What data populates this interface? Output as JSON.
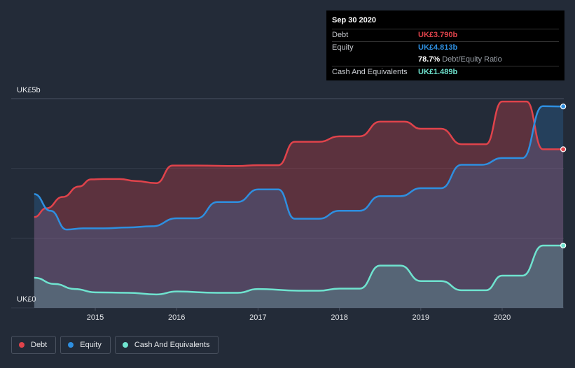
{
  "chart_data": {
    "type": "area",
    "ylabel_top": "UK£5b",
    "ylabel_bottom": "UK£0",
    "ylim": [
      0,
      5
    ],
    "x_ticks": [
      "2015",
      "2016",
      "2017",
      "2018",
      "2019",
      "2020"
    ],
    "series": [
      {
        "name": "Debt",
        "color": "#e0434b",
        "points": [
          [
            2014.25,
            2.17
          ],
          [
            2014.4,
            2.38
          ],
          [
            2014.6,
            2.65
          ],
          [
            2014.8,
            2.9
          ],
          [
            2014.95,
            3.07
          ],
          [
            2015.1,
            3.08
          ],
          [
            2015.3,
            3.08
          ],
          [
            2015.5,
            3.03
          ],
          [
            2015.75,
            2.98
          ],
          [
            2015.95,
            3.4
          ],
          [
            2016.25,
            3.4
          ],
          [
            2016.75,
            3.39
          ],
          [
            2017.0,
            3.41
          ],
          [
            2017.25,
            3.41
          ],
          [
            2017.45,
            3.97
          ],
          [
            2017.75,
            3.97
          ],
          [
            2018.0,
            4.1
          ],
          [
            2018.25,
            4.1
          ],
          [
            2018.5,
            4.45
          ],
          [
            2018.8,
            4.45
          ],
          [
            2019.0,
            4.28
          ],
          [
            2019.25,
            4.28
          ],
          [
            2019.5,
            3.91
          ],
          [
            2019.8,
            3.91
          ],
          [
            2020.0,
            4.93
          ],
          [
            2020.3,
            4.93
          ],
          [
            2020.5,
            3.79
          ],
          [
            2020.75,
            3.79
          ]
        ]
      },
      {
        "name": "Equity",
        "color": "#2e8fe0",
        "points": [
          [
            2014.25,
            2.72
          ],
          [
            2014.45,
            2.32
          ],
          [
            2014.65,
            1.87
          ],
          [
            2014.85,
            1.9
          ],
          [
            2015.1,
            1.9
          ],
          [
            2015.4,
            1.92
          ],
          [
            2015.7,
            1.95
          ],
          [
            2016.0,
            2.14
          ],
          [
            2016.25,
            2.14
          ],
          [
            2016.5,
            2.53
          ],
          [
            2016.75,
            2.53
          ],
          [
            2017.0,
            2.83
          ],
          [
            2017.25,
            2.83
          ],
          [
            2017.45,
            2.13
          ],
          [
            2017.75,
            2.13
          ],
          [
            2018.0,
            2.32
          ],
          [
            2018.25,
            2.32
          ],
          [
            2018.5,
            2.67
          ],
          [
            2018.75,
            2.67
          ],
          [
            2019.0,
            2.86
          ],
          [
            2019.25,
            2.86
          ],
          [
            2019.5,
            3.42
          ],
          [
            2019.75,
            3.42
          ],
          [
            2020.0,
            3.58
          ],
          [
            2020.25,
            3.58
          ],
          [
            2020.5,
            4.82
          ],
          [
            2020.75,
            4.813
          ]
        ]
      },
      {
        "name": "Cash And Equivalents",
        "color": "#6fe3cf",
        "points": [
          [
            2014.25,
            0.72
          ],
          [
            2014.5,
            0.57
          ],
          [
            2014.75,
            0.45
          ],
          [
            2015.0,
            0.37
          ],
          [
            2015.4,
            0.36
          ],
          [
            2015.75,
            0.32
          ],
          [
            2016.0,
            0.39
          ],
          [
            2016.5,
            0.36
          ],
          [
            2016.75,
            0.36
          ],
          [
            2017.0,
            0.45
          ],
          [
            2017.5,
            0.41
          ],
          [
            2017.75,
            0.41
          ],
          [
            2018.0,
            0.46
          ],
          [
            2018.25,
            0.46
          ],
          [
            2018.5,
            1.01
          ],
          [
            2018.75,
            1.01
          ],
          [
            2019.0,
            0.64
          ],
          [
            2019.25,
            0.64
          ],
          [
            2019.5,
            0.42
          ],
          [
            2019.8,
            0.42
          ],
          [
            2020.0,
            0.77
          ],
          [
            2020.25,
            0.77
          ],
          [
            2020.5,
            1.489
          ],
          [
            2020.75,
            1.489
          ]
        ]
      }
    ]
  },
  "tooltip": {
    "date": "Sep 30 2020",
    "rows": [
      {
        "label": "Debt",
        "value": "UK£3.790b",
        "color": "#e0434b"
      },
      {
        "label": "Equity",
        "value": "UK£4.813b",
        "color": "#2e8fe0"
      },
      {
        "label": "",
        "value": "78.7%",
        "suffix": "Debt/Equity Ratio",
        "color": "#ffffff"
      },
      {
        "label": "Cash And Equivalents",
        "value": "UK£1.489b",
        "color": "#6fe3cf"
      }
    ]
  },
  "legend": [
    {
      "label": "Debt",
      "color": "#e0434b"
    },
    {
      "label": "Equity",
      "color": "#2e8fe0"
    },
    {
      "label": "Cash And Equivalents",
      "color": "#6fe3cf"
    }
  ]
}
